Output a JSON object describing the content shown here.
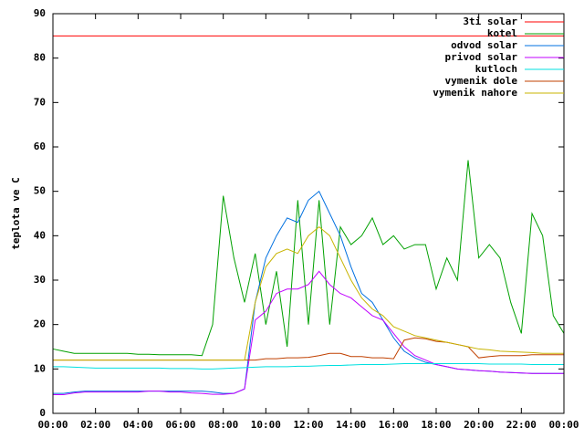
{
  "chart_data": {
    "type": "line",
    "y_label": "teplota ve C",
    "legend": "top-right",
    "x": [
      0,
      0.5,
      1,
      1.5,
      2,
      2.5,
      3,
      3.5,
      4,
      4.5,
      5,
      5.5,
      6,
      6.5,
      7,
      7.5,
      8,
      8.5,
      9,
      9.5,
      10,
      10.5,
      11,
      11.5,
      12,
      12.5,
      13,
      13.5,
      14,
      14.5,
      15,
      15.5,
      16,
      16.5,
      17,
      17.5,
      18,
      18.5,
      19,
      19.5,
      20,
      20.5,
      21,
      21.5,
      22,
      22.5,
      23,
      23.5,
      24
    ],
    "xlim": [
      0,
      24
    ],
    "xticks": [
      {
        "value": 0,
        "label": "00:00"
      },
      {
        "value": 2,
        "label": "02:00"
      },
      {
        "value": 4,
        "label": "04:00"
      },
      {
        "value": 6,
        "label": "06:00"
      },
      {
        "value": 8,
        "label": "08:00"
      },
      {
        "value": 10,
        "label": "10:00"
      },
      {
        "value": 12,
        "label": "12:00"
      },
      {
        "value": 14,
        "label": "14:00"
      },
      {
        "value": 16,
        "label": "16:00"
      },
      {
        "value": 18,
        "label": "18:00"
      },
      {
        "value": 20,
        "label": "20:00"
      },
      {
        "value": 22,
        "label": "22:00"
      },
      {
        "value": 24,
        "label": "00:00"
      }
    ],
    "ylim": [
      0,
      90
    ],
    "yticks": [
      0,
      10,
      20,
      30,
      40,
      50,
      60,
      70,
      80,
      90
    ],
    "series": [
      {
        "name": "3ti solar",
        "color": "#ff0000",
        "values": [
          85,
          85,
          85,
          85,
          85,
          85,
          85,
          85,
          85,
          85,
          85,
          85,
          85,
          85,
          85,
          85,
          85,
          85,
          85,
          85,
          85,
          85,
          85,
          85,
          85,
          85,
          85,
          85,
          85,
          85,
          85,
          85,
          85,
          85,
          85,
          85,
          85,
          85,
          85,
          85,
          85,
          85,
          85,
          85,
          85,
          85,
          85,
          85,
          85
        ]
      },
      {
        "name": "kotel",
        "color": "#00a000",
        "values": [
          14.5,
          14,
          13.5,
          13.5,
          13.5,
          13.5,
          13.5,
          13.5,
          13.3,
          13.3,
          13.2,
          13.2,
          13.2,
          13.2,
          13,
          20,
          49,
          35,
          25,
          36,
          20,
          32,
          15,
          48,
          20,
          48,
          20,
          42,
          38,
          40,
          44,
          38,
          40,
          37,
          38,
          38,
          28,
          35,
          30,
          57,
          35,
          38,
          35,
          25,
          18,
          45,
          40,
          22,
          18
        ]
      },
      {
        "name": "odvod solar",
        "color": "#0070e0",
        "values": [
          4.5,
          4.5,
          4.8,
          5,
          5,
          5,
          5,
          5,
          5,
          5,
          5,
          5,
          5,
          5,
          5,
          4.8,
          4.5,
          4.5,
          5.5,
          25,
          35,
          40,
          44,
          43,
          48,
          50,
          45,
          40,
          33,
          27,
          25,
          21,
          17,
          14,
          12.5,
          11.5,
          11,
          10.5,
          10,
          9.8,
          9.6,
          9.5,
          9.3,
          9.2,
          9.1,
          9,
          9,
          9,
          9
        ]
      },
      {
        "name": "privod solar",
        "color": "#c000ff",
        "values": [
          4.2,
          4.2,
          4.6,
          4.8,
          4.8,
          4.8,
          4.8,
          4.8,
          4.8,
          5,
          5,
          4.8,
          4.8,
          4.6,
          4.5,
          4.3,
          4.3,
          4.5,
          5.5,
          21,
          23,
          27,
          28,
          28,
          29,
          32,
          29,
          27,
          26,
          24,
          22,
          21,
          18,
          15,
          13,
          12,
          11,
          10.5,
          10,
          9.8,
          9.6,
          9.5,
          9.3,
          9.2,
          9.1,
          9,
          9,
          9,
          9
        ]
      },
      {
        "name": "kutloch",
        "color": "#00e0e0",
        "values": [
          10.5,
          10.5,
          10.4,
          10.3,
          10.2,
          10.2,
          10.2,
          10.2,
          10.2,
          10.2,
          10.2,
          10.1,
          10.1,
          10.1,
          10,
          10,
          10.1,
          10.2,
          10.3,
          10.4,
          10.5,
          10.5,
          10.5,
          10.6,
          10.6,
          10.7,
          10.8,
          10.8,
          10.9,
          11,
          11,
          11,
          11.1,
          11.2,
          11.2,
          11.2,
          11.2,
          11.2,
          11.2,
          11.2,
          11.2,
          11.1,
          11.1,
          11.1,
          11.1,
          11,
          11,
          11,
          11
        ]
      },
      {
        "name": "vymenik dole",
        "color": "#c04000",
        "values": [
          12,
          12,
          12,
          12,
          12,
          12,
          12,
          12,
          12,
          12,
          12,
          12,
          12,
          12,
          12,
          12,
          12,
          12,
          12,
          12,
          12.3,
          12.3,
          12.5,
          12.5,
          12.6,
          13,
          13.5,
          13.5,
          12.8,
          12.8,
          12.5,
          12.5,
          12.3,
          16.5,
          17,
          16.8,
          16.2,
          16,
          15.5,
          15,
          12.5,
          12.8,
          13,
          13,
          13,
          13.2,
          13.2,
          13.2,
          13.2
        ]
      },
      {
        "name": "vymenik nahore",
        "color": "#c8b400",
        "values": [
          12,
          12,
          12,
          12,
          12,
          12,
          12,
          12,
          12,
          12,
          12,
          12,
          12,
          12,
          12,
          12,
          12,
          12,
          12,
          25,
          33,
          36,
          37,
          36,
          40,
          42,
          40,
          35,
          30,
          26,
          23.5,
          22,
          19.5,
          18.5,
          17.5,
          17,
          16.5,
          16,
          15.5,
          15,
          14.5,
          14.3,
          14,
          13.9,
          13.8,
          13.7,
          13.5,
          13.5,
          13.5
        ]
      }
    ]
  }
}
